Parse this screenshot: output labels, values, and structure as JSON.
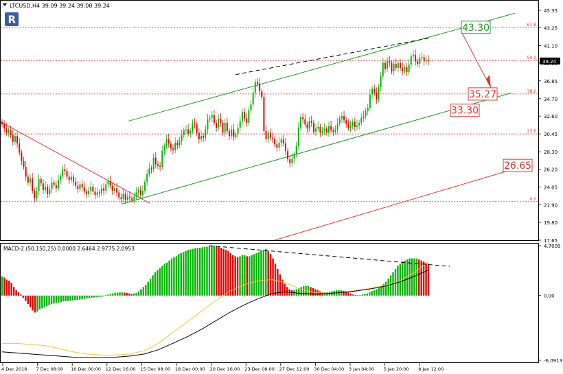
{
  "header": {
    "title": "LTCUSD,H4  39.09 39.24 39.00 39.24"
  },
  "brand": {
    "logo_letter": "R",
    "logo_color": "#3b5bab"
  },
  "colors": {
    "bull": "#00b400",
    "bear": "#e00000",
    "channel": "#1f9a1f",
    "fib": "#e8332e",
    "signal": "#f4c431",
    "macd_line": "#000000",
    "price_box": "#000000"
  },
  "chart_data": [
    {
      "type": "candlestick",
      "symbol": "LTCUSD",
      "timeframe": "H4",
      "ohlc_header": {
        "open": 39.09,
        "high": 39.24,
        "low": 39.0,
        "close": 39.24
      },
      "current_price": "39.24",
      "ylim": [
        17.65,
        45.35
      ],
      "y_ticks": [
        "45.35",
        "43.25",
        "41.10",
        "39.00",
        "36.85",
        "34.70",
        "32.60",
        "30.45",
        "28.30",
        "26.20",
        "24.05",
        "21.90",
        "19.80",
        "17.65"
      ],
      "x_ticks": [
        "4 Dec 2018",
        "7 Dec 08:00",
        "10 Dec 00:00",
        "12 Dec 16:00",
        "15 Dec 08:00",
        "18 Dec 00:00",
        "20 Dec 16:00",
        "23 Dec 08:00",
        "27 Dec 12:00",
        "30 Dec 04:00",
        "3 Jan 04:00",
        "5 Jan 20:00",
        "8 Jan 12:00"
      ],
      "fibonacci": [
        {
          "label": "61.8",
          "value": 43.3
        },
        {
          "label": "50.0",
          "value": 39.3
        },
        {
          "label": "38.2",
          "value": 35.27
        },
        {
          "label": "23.6",
          "value": 30.45
        },
        {
          "label": "0.0",
          "value": 22.3
        }
      ],
      "targets": [
        {
          "label": "43.30",
          "value": 43.3,
          "color": "#1f9a1f"
        },
        {
          "label": "35.27",
          "value": 35.27,
          "color": "#e8332e"
        },
        {
          "label": "33.30",
          "value": 33.3,
          "color": "#e8332e"
        },
        {
          "label": "26.65",
          "value": 26.65,
          "color": "#e8332e"
        }
      ],
      "closes": [
        31.6,
        31.1,
        30.6,
        30.9,
        30.3,
        29.5,
        30.2,
        29.3,
        28.2,
        27.2,
        26.5,
        25.3,
        24.6,
        25.1,
        23.6,
        22.7,
        23.6,
        25.0,
        24.5,
        23.7,
        24.1,
        23.2,
        23.8,
        24.6,
        24.3,
        23.9,
        24.9,
        25.4,
        26.2,
        26.0,
        25.3,
        24.9,
        25.3,
        24.7,
        24.2,
        23.8,
        24.4,
        24.0,
        23.5,
        23.2,
        23.6,
        24.1,
        23.5,
        23.1,
        23.4,
        23.3,
        23.9,
        23.6,
        24.4,
        24.8,
        24.2,
        23.6,
        23.9,
        23.4,
        22.8,
        22.6,
        23.2,
        22.5,
        22.9,
        22.7,
        22.5,
        22.9,
        23.4,
        23.7,
        23.1,
        23.6,
        24.7,
        25.6,
        26.3,
        26.2,
        27.6,
        26.8,
        26.6,
        26.5,
        28.4,
        29.0,
        29.8,
        29.3,
        28.7,
        28.5,
        29.4,
        29.1,
        29.6,
        30.3,
        30.9,
        31.0,
        30.5,
        30.8,
        31.7,
        31.6,
        30.6,
        29.8,
        30.2,
        30.0,
        31.0,
        32.2,
        32.4,
        32.7,
        31.8,
        31.2,
        32.3,
        31.8,
        30.6,
        31.8,
        30.8,
        30.2,
        31.0,
        30.1,
        30.4,
        31.2,
        32.0,
        33.1,
        32.3,
        31.8,
        33.3,
        34.0,
        35.4,
        36.7,
        36.5,
        35.6,
        34.9,
        30.8,
        29.8,
        30.6,
        30.0,
        29.9,
        29.2,
        28.8,
        29.4,
        29.8,
        29.3,
        28.4,
        27.4,
        26.9,
        27.5,
        28.0,
        29.0,
        31.2,
        32.5,
        32.2,
        31.6,
        31.1,
        32.0,
        31.8,
        30.7,
        31.1,
        31.3,
        30.6,
        30.8,
        31.1,
        30.6,
        31.4,
        30.9,
        30.7,
        31.0,
        31.7,
        32.3,
        32.6,
        32.1,
        31.7,
        31.2,
        31.4,
        31.9,
        31.3,
        31.5,
        31.8,
        32.4,
        32.6,
        33.2,
        33.6,
        35.2,
        35.9,
        35.4,
        34.6,
        36.1,
        37.4,
        39.0,
        38.3,
        39.2,
        39.0,
        38.0,
        38.9,
        38.4,
        39.0,
        38.4,
        38.0,
        38.5,
        37.9,
        38.8,
        39.8,
        40.0,
        39.2,
        38.9,
        39.6,
        39.7,
        39.2,
        39.3,
        39.24
      ]
    },
    {
      "type": "histogram+line",
      "name": "MACD-2 (50,150,25) 0.0000 2.6464 2.9775 2.0953",
      "ylim": [
        -6.0913,
        4.7009
      ],
      "y_ticks": [
        "4.7009",
        "0.00",
        "-6.0913"
      ],
      "histogram": [
        1.8,
        1.7,
        1.5,
        1.4,
        1.2,
        0.8,
        0.5,
        0.3,
        0.1,
        -0.2,
        -0.5,
        -0.8,
        -1.1,
        -1.4,
        -1.6,
        -1.5,
        -1.3,
        -1.2,
        -1.1,
        -1.0,
        -0.9,
        -0.8,
        -0.75,
        -0.7,
        -0.65,
        -0.6,
        -0.55,
        -0.52,
        -0.5,
        -0.48,
        -0.45,
        -0.42,
        -0.4,
        -0.38,
        -0.35,
        -0.3,
        -0.25,
        -0.22,
        -0.2,
        -0.18,
        -0.15,
        -0.12,
        -0.1,
        -0.08,
        0.05,
        0.1,
        0.15,
        0.2,
        0.25,
        0.28,
        0.3,
        0.3,
        0.28,
        0.25,
        0.2,
        0.15,
        0.2,
        0.25,
        0.4,
        0.6,
        0.8,
        1.0,
        1.3,
        1.6,
        1.9,
        2.2,
        2.4,
        2.6,
        2.8,
        3.0,
        3.1,
        3.3,
        3.5,
        3.6,
        3.7,
        3.9,
        4.0,
        4.1,
        4.2,
        4.3,
        4.35,
        4.4,
        4.45,
        4.5,
        4.5,
        4.55,
        4.6,
        4.6,
        4.65,
        4.7,
        4.7,
        4.65,
        4.6,
        4.5,
        4.4,
        4.3,
        4.2,
        4.0,
        3.8,
        3.7,
        3.6,
        3.7,
        3.8,
        3.8,
        3.7,
        3.7,
        3.8,
        3.9,
        4.0,
        4.1,
        4.2,
        4.3,
        4.4,
        4.2,
        3.9,
        3.5,
        3.0,
        2.5,
        2.0,
        1.5,
        1.1,
        0.8,
        0.6,
        0.5,
        0.5,
        0.6,
        0.7,
        0.8,
        0.9,
        0.9,
        0.9,
        0.8,
        0.7,
        0.6,
        0.5,
        0.4,
        0.3,
        0.3,
        0.3,
        0.35,
        0.4,
        0.45,
        0.5,
        0.5,
        0.5,
        0.45,
        0.4,
        0.3,
        0.2,
        0.1,
        0.05,
        0.02,
        0.05,
        0.1,
        0.15,
        0.2,
        0.3,
        0.4,
        0.5,
        0.6,
        0.7,
        0.9,
        1.1,
        1.3,
        1.6,
        1.9,
        2.2,
        2.5,
        2.8,
        3.0,
        3.2,
        3.3,
        3.4,
        3.5,
        3.5,
        3.5,
        3.5,
        3.4,
        3.3,
        3.2,
        3.1,
        3.0
      ],
      "signal_line": [
        -4.5,
        -4.5,
        -4.6,
        -4.7,
        -5.0,
        -5.3,
        -5.5,
        -5.6,
        -5.6,
        -5.5,
        -5.2,
        -4.5,
        -3.5,
        -2.5,
        -1.5,
        -0.5,
        0.4,
        1.0,
        1.4,
        1.5,
        1.2,
        0.6,
        0.3,
        0.2,
        0.3,
        0.5,
        0.7,
        1.0,
        1.4,
        2.2,
        3.2
      ],
      "macd_line": [
        -5.3,
        -5.4,
        -5.5,
        -5.6,
        -5.7,
        -5.8,
        -5.85,
        -5.85,
        -5.8,
        -5.7,
        -5.5,
        -5.1,
        -4.5,
        -3.9,
        -3.2,
        -2.4,
        -1.6,
        -0.9,
        -0.3,
        0.2,
        0.35,
        0.2,
        0.15,
        0.2,
        0.3,
        0.45,
        0.65,
        0.9,
        1.3,
        1.8,
        2.4
      ]
    }
  ]
}
